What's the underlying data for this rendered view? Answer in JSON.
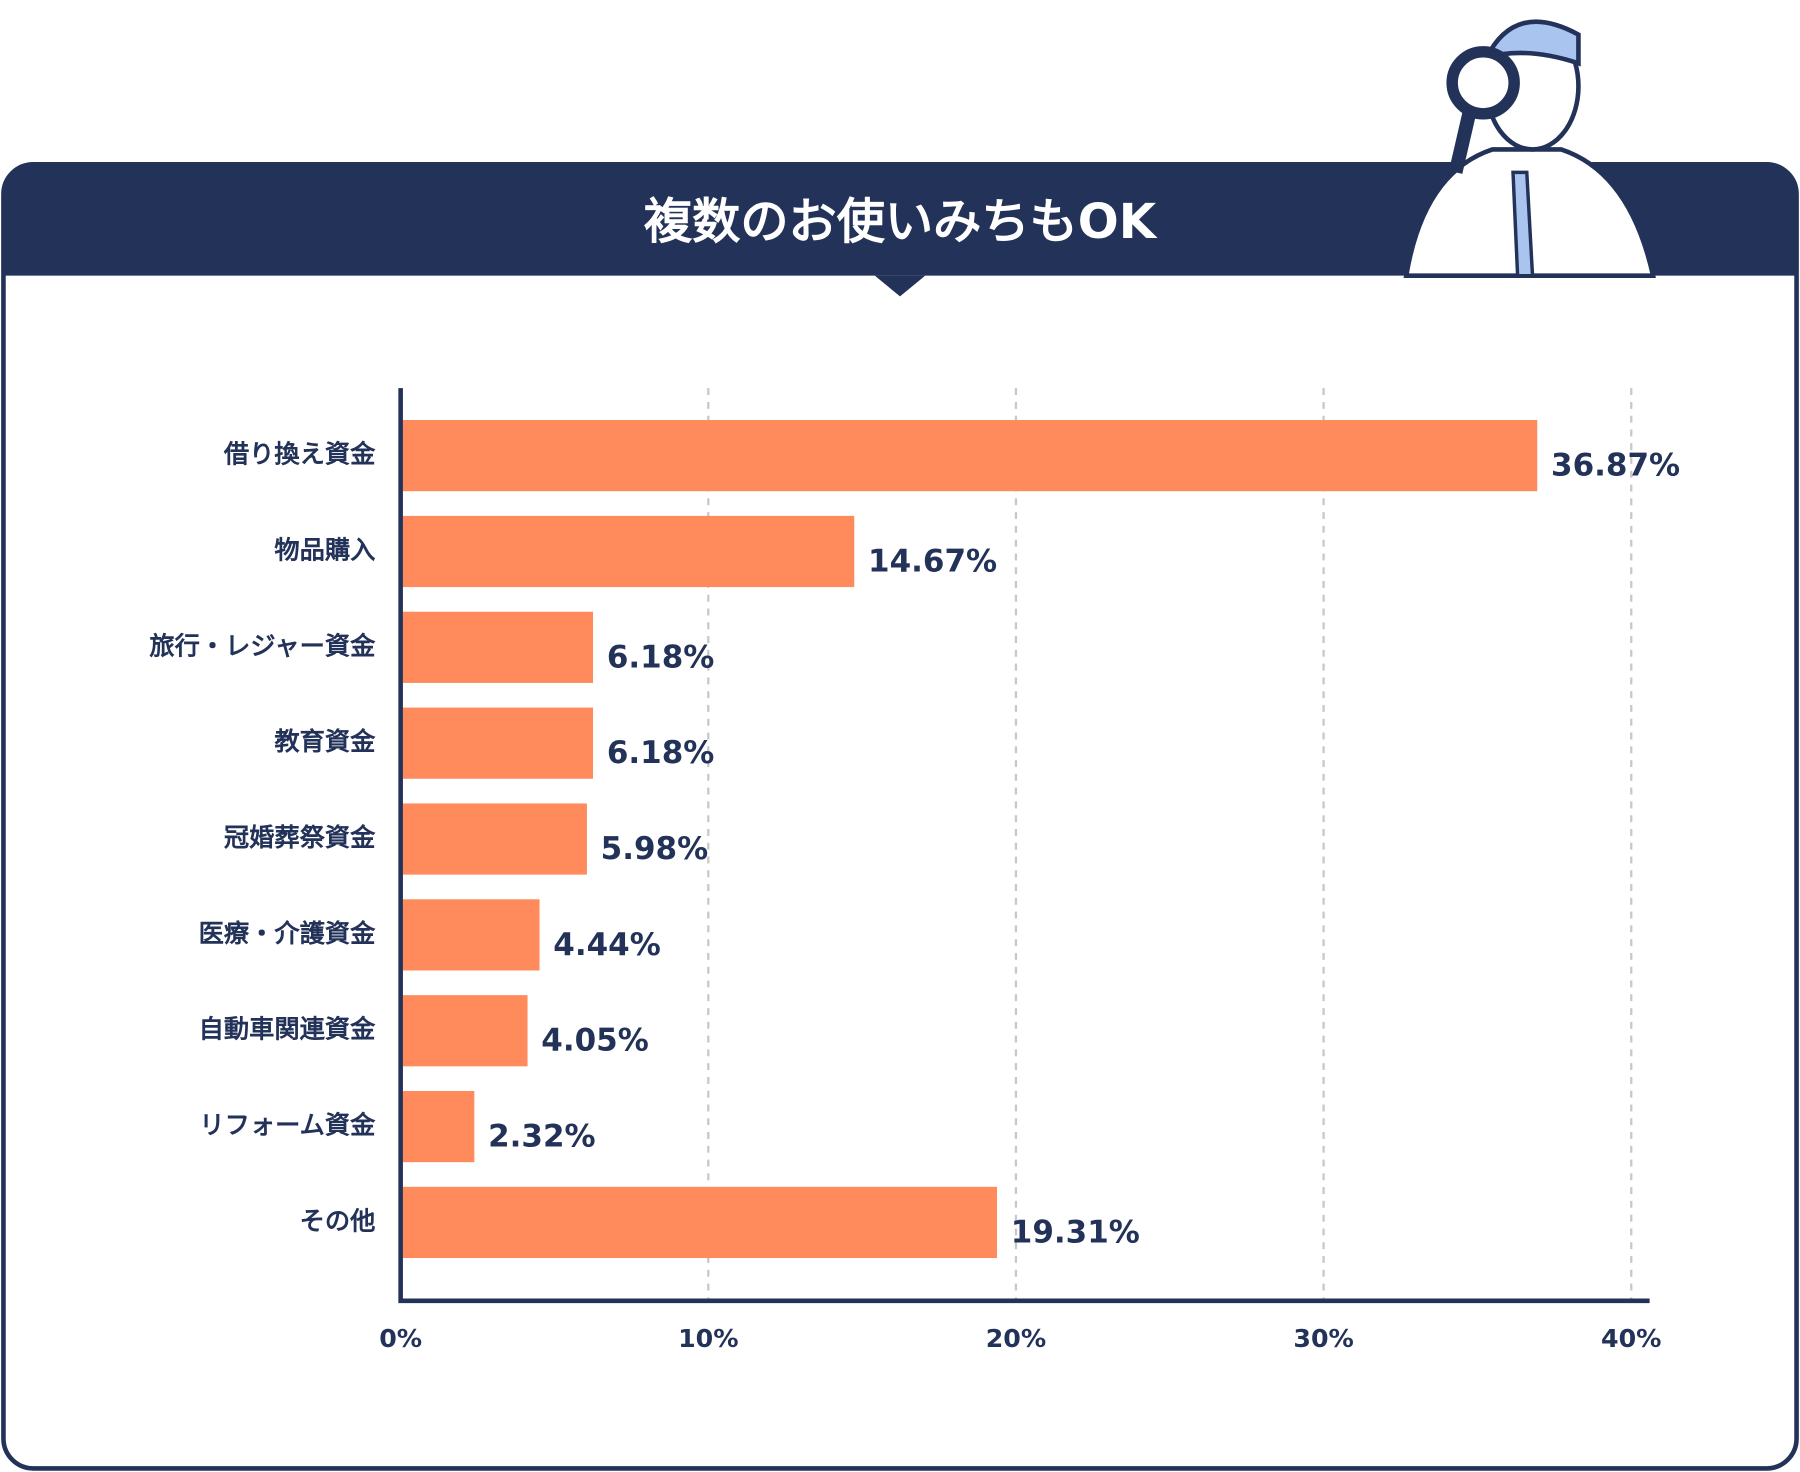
{
  "chart_data": {
    "type": "bar",
    "orientation": "horizontal",
    "title": "複数のお使いみちもOK",
    "categories": [
      "借り換え資金",
      "物品購入",
      "旅行・レジャー資金",
      "教育資金",
      "冠婚葬祭資金",
      "医療・介護資金",
      "自動車関連資金",
      "リフォーム資金",
      "その他"
    ],
    "values": [
      36.87,
      14.67,
      6.18,
      6.18,
      5.98,
      4.44,
      4.05,
      2.32,
      19.31
    ],
    "value_labels": [
      "36.87%",
      "14.67%",
      "6.18%",
      "6.18%",
      "5.98%",
      "4.44%",
      "4.05%",
      "2.32%",
      "19.31%"
    ],
    "color": "#ff8a5c",
    "xlim": [
      0,
      40
    ],
    "xticks": [
      {
        "value": 0,
        "label": "0%"
      },
      {
        "value": 10,
        "label": "10%"
      },
      {
        "value": 20,
        "label": "20%"
      },
      {
        "value": 30,
        "label": "30%"
      },
      {
        "value": 40,
        "label": "40%"
      }
    ],
    "grid": true
  }
}
